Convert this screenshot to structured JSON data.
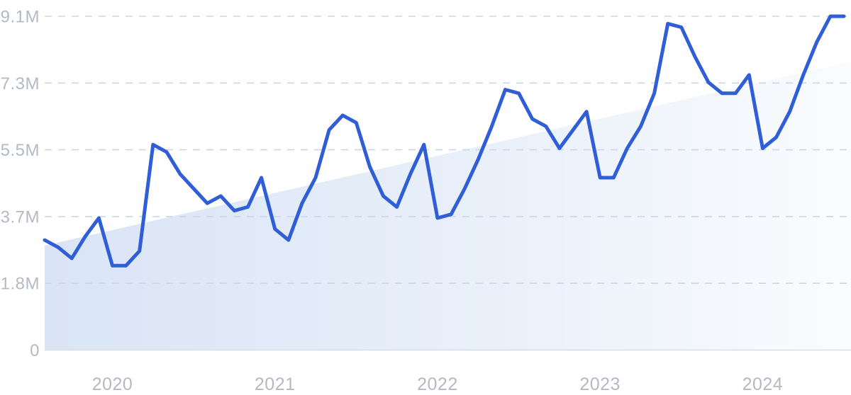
{
  "page": {
    "background": "#ffffff"
  },
  "chart_data": {
    "type": "line",
    "title": "",
    "unit": "M",
    "legend": "none",
    "grid": "dashed-horizontal",
    "ymax": 9.1,
    "x": [
      "2019-08",
      "2019-09",
      "2019-10",
      "2019-11",
      "2019-12",
      "2020-01",
      "2020-02",
      "2020-03",
      "2020-04",
      "2020-05",
      "2020-06",
      "2020-07",
      "2020-08",
      "2020-09",
      "2020-10",
      "2020-11",
      "2020-12",
      "2021-01",
      "2021-02",
      "2021-03",
      "2021-04",
      "2021-05",
      "2021-06",
      "2021-07",
      "2021-08",
      "2021-09",
      "2021-10",
      "2021-11",
      "2021-12",
      "2022-01",
      "2022-02",
      "2022-03",
      "2022-04",
      "2022-05",
      "2022-06",
      "2022-07",
      "2022-08",
      "2022-09",
      "2022-10",
      "2022-11",
      "2022-12",
      "2023-01",
      "2023-02",
      "2023-03",
      "2023-04",
      "2023-05",
      "2023-06",
      "2023-07",
      "2023-08",
      "2023-09",
      "2023-10",
      "2023-11",
      "2023-12",
      "2024-01",
      "2024-02",
      "2024-03",
      "2024-04",
      "2024-05",
      "2024-06",
      "2024-07"
    ],
    "values": [
      3.0,
      2.8,
      2.5,
      3.1,
      3.6,
      2.3,
      2.3,
      2.7,
      5.6,
      5.4,
      4.8,
      4.4,
      4.0,
      4.2,
      3.8,
      3.9,
      4.7,
      3.3,
      3.0,
      4.0,
      4.7,
      6.0,
      6.4,
      6.2,
      5.0,
      4.2,
      3.9,
      4.8,
      5.6,
      3.6,
      3.7,
      4.4,
      5.2,
      6.1,
      7.1,
      7.0,
      6.3,
      6.1,
      5.5,
      6.0,
      6.5,
      4.7,
      4.7,
      5.5,
      6.1,
      7.0,
      8.9,
      8.8,
      8.0,
      7.3,
      7.0,
      7.0,
      7.5,
      5.5,
      5.8,
      6.5,
      7.5,
      8.4,
      9.1,
      9.1
    ],
    "values_unit_suffix": "M",
    "yticks": [
      {
        "label": "0",
        "value": 0
      },
      {
        "label": "1.8M",
        "value": 1.82
      },
      {
        "label": "3.7M",
        "value": 3.64
      },
      {
        "label": "5.5M",
        "value": 5.46
      },
      {
        "label": "7.3M",
        "value": 7.28
      },
      {
        "label": "9.1M",
        "value": 9.1
      }
    ],
    "xticks": [
      "2020",
      "2021",
      "2022",
      "2023",
      "2024"
    ],
    "trend_area": {
      "shape": "linear-wedge",
      "start_value": 2.85,
      "end_value": 7.87
    },
    "colors": {
      "line": "#2f5ed7",
      "grid_dash": "#ccd6e9",
      "axis_line": "#d9dde6",
      "tick_text": "#b4b9c6",
      "fill_start": "#d9e4f5",
      "fill_mid": "#e9f0fa",
      "fill_end": "#fafcfe"
    }
  }
}
